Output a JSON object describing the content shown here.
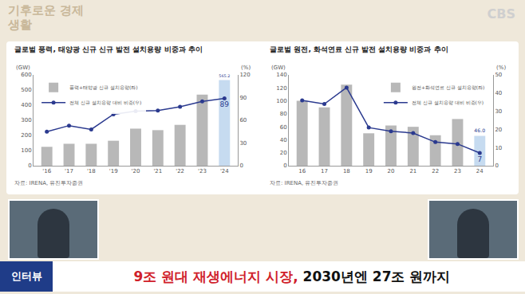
{
  "header": {
    "logo": "기후로운 경제생활",
    "channel": "CBS"
  },
  "chart_data": [
    {
      "type": "bar",
      "title": "글로벌 풍력, 태양광 신규 신규 발전 설치용량 비중과 추이",
      "ylabel": "(GW)",
      "y2label": "(%)",
      "source": "자료: IRENA, 유진투자증권",
      "categories": [
        "'16",
        "'17",
        "'18",
        "'19",
        "'20",
        "'21",
        "'22",
        "'23",
        "'24"
      ],
      "series": [
        {
          "name": "풍력+태양광 신규 설치용량(좌)",
          "type": "bar",
          "colors": [
            "#b8b8b8",
            "#b8b8b8",
            "#b8b8b8",
            "#b8b8b8",
            "#b8b8b8",
            "#b8b8b8",
            "#b8b8b8",
            "#b8b8b8",
            "#c6dbf0"
          ],
          "values": [
            125,
            145,
            145,
            165,
            245,
            235,
            270,
            470,
            565.2
          ],
          "value_labels": [
            null,
            null,
            null,
            null,
            null,
            null,
            null,
            null,
            "565.2"
          ]
        },
        {
          "name": "전체 신규 설치용량 대비 비중(우)",
          "type": "line",
          "axis": "y2",
          "color": "#2b3a8f",
          "marker": "circle",
          "values": [
            45,
            53,
            48,
            68,
            72,
            73,
            78,
            85,
            89
          ],
          "value_labels": [
            null,
            null,
            null,
            null,
            null,
            null,
            null,
            null,
            "89"
          ]
        }
      ],
      "ylim": [
        0,
        600
      ],
      "yticks": [
        0,
        100,
        200,
        300,
        400,
        500,
        600
      ],
      "y2lim": [
        0,
        120
      ],
      "y2ticks": [
        0,
        30,
        60,
        90,
        120
      ],
      "grid": false,
      "legend": "top left"
    },
    {
      "type": "bar",
      "title": "글로벌 원전, 화석연료 신규 발전 설치용량 비중과 추이",
      "ylabel": "(GW)",
      "y2label": "(%)",
      "source": "자료: IRENA, 유진투자증권",
      "categories": [
        "16",
        "17",
        "18",
        "19",
        "20",
        "21",
        "22",
        "23",
        "24"
      ],
      "series": [
        {
          "name": "원전+화석연료 신규 설치용량(좌)",
          "type": "bar",
          "colors": [
            "#b8b8b8",
            "#b8b8b8",
            "#b8b8b8",
            "#b8b8b8",
            "#b8b8b8",
            "#b8b8b8",
            "#b8b8b8",
            "#b8b8b8",
            "#c6dbf0"
          ],
          "values": [
            100,
            90,
            125,
            50,
            62,
            60,
            47,
            72,
            46.0
          ],
          "value_labels": [
            null,
            null,
            null,
            null,
            null,
            null,
            null,
            null,
            "46.0"
          ]
        },
        {
          "name": "전체 신규 설치용량 대비 비중(우)",
          "type": "line",
          "axis": "y2",
          "color": "#2b3a8f",
          "marker": "circle",
          "values": [
            36,
            34,
            43,
            21,
            19,
            18,
            13,
            12,
            7
          ],
          "value_labels": [
            null,
            null,
            null,
            null,
            null,
            null,
            null,
            null,
            "7"
          ]
        }
      ],
      "ylim": [
        0,
        140
      ],
      "yticks": [
        0,
        20,
        40,
        60,
        80,
        100,
        120,
        140
      ],
      "y2lim": [
        0,
        50
      ],
      "y2ticks": [
        0,
        10,
        20,
        30,
        40,
        50
      ],
      "grid": false,
      "legend": "top right"
    }
  ],
  "caption": {
    "tag": "인터뷰",
    "headline": [
      {
        "text": "9조 원대 재생에너지 시장,",
        "color": "#d0202a"
      },
      {
        "text": "2030년엔 27조 원까지",
        "color": "#111111"
      }
    ]
  }
}
